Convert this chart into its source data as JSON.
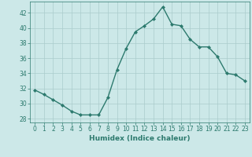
{
  "x": [
    0,
    1,
    2,
    3,
    4,
    5,
    6,
    7,
    8,
    9,
    10,
    11,
    12,
    13,
    14,
    15,
    16,
    17,
    18,
    19,
    20,
    21,
    22,
    23
  ],
  "y": [
    31.8,
    31.2,
    30.5,
    29.8,
    29.0,
    28.5,
    28.5,
    28.5,
    30.8,
    34.5,
    37.3,
    39.5,
    40.3,
    41.2,
    42.8,
    40.5,
    40.3,
    38.5,
    37.5,
    37.5,
    36.2,
    34.0,
    33.8,
    33.0
  ],
  "line_color": "#2d7a6e",
  "marker": "D",
  "marker_size": 2.0,
  "bg_color": "#cce8e8",
  "grid_color": "#aacccc",
  "xlabel": "Humidex (Indice chaleur)",
  "xlim": [
    -0.5,
    23.5
  ],
  "ylim": [
    27.5,
    43.5
  ],
  "yticks": [
    28,
    30,
    32,
    34,
    36,
    38,
    40,
    42
  ],
  "xticks": [
    0,
    1,
    2,
    3,
    4,
    5,
    6,
    7,
    8,
    9,
    10,
    11,
    12,
    13,
    14,
    15,
    16,
    17,
    18,
    19,
    20,
    21,
    22,
    23
  ],
  "tick_color": "#2d7a6e",
  "axis_color": "#2d7a6e",
  "label_fontsize": 6.5,
  "tick_fontsize": 5.5,
  "linewidth": 1.0
}
